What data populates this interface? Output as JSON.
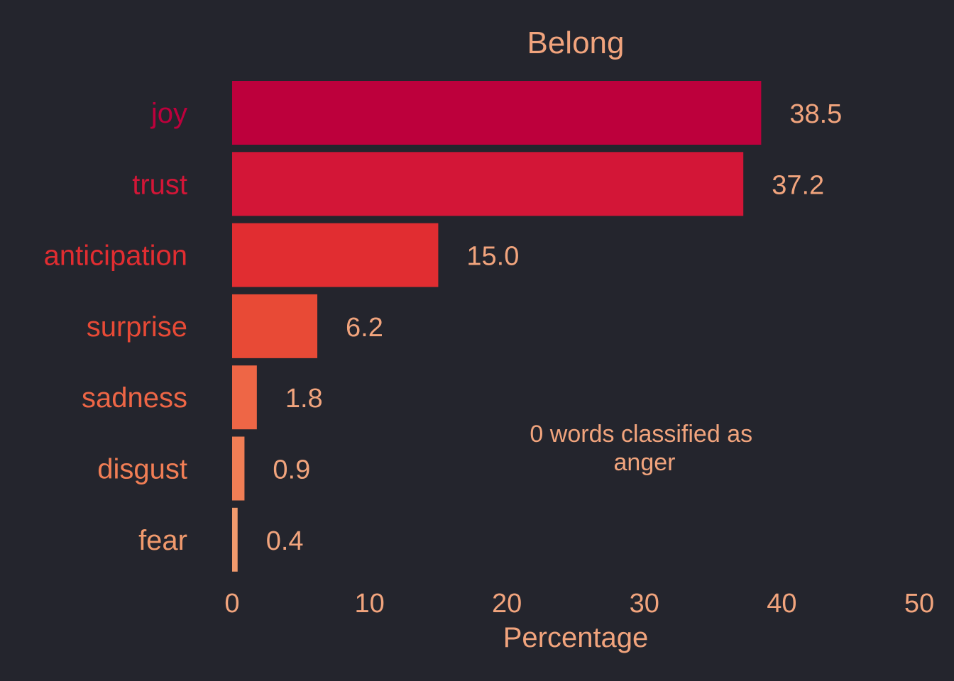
{
  "chart_data": {
    "type": "bar",
    "orientation": "horizontal",
    "title": "Belong",
    "xlabel": "Percentage",
    "ylabel": "",
    "xlim": [
      0,
      50
    ],
    "xticks": [
      0,
      10,
      20,
      30,
      40,
      50
    ],
    "xtick_labels": [
      "0",
      "10",
      "20",
      "30",
      "40",
      "50"
    ],
    "categories": [
      "joy",
      "trust",
      "anticipation",
      "surprise",
      "sadness",
      "disgust",
      "fear"
    ],
    "values": [
      38.5,
      37.2,
      15.0,
      6.2,
      1.8,
      0.9,
      0.4
    ],
    "value_labels": [
      "38.5",
      "37.2",
      "15.0",
      "6.2",
      "1.8",
      "0.9",
      "0.4"
    ],
    "bar_colors": [
      "#bd003c",
      "#d31637",
      "#e12d31",
      "#e84a36",
      "#ee6646",
      "#f17e55",
      "#f19a6d"
    ],
    "text_color": "#f1a47d",
    "background": "#24252d",
    "grid": false,
    "legend": "none",
    "annotation": {
      "lines": [
        "0 words classified as",
        "anger"
      ]
    }
  }
}
